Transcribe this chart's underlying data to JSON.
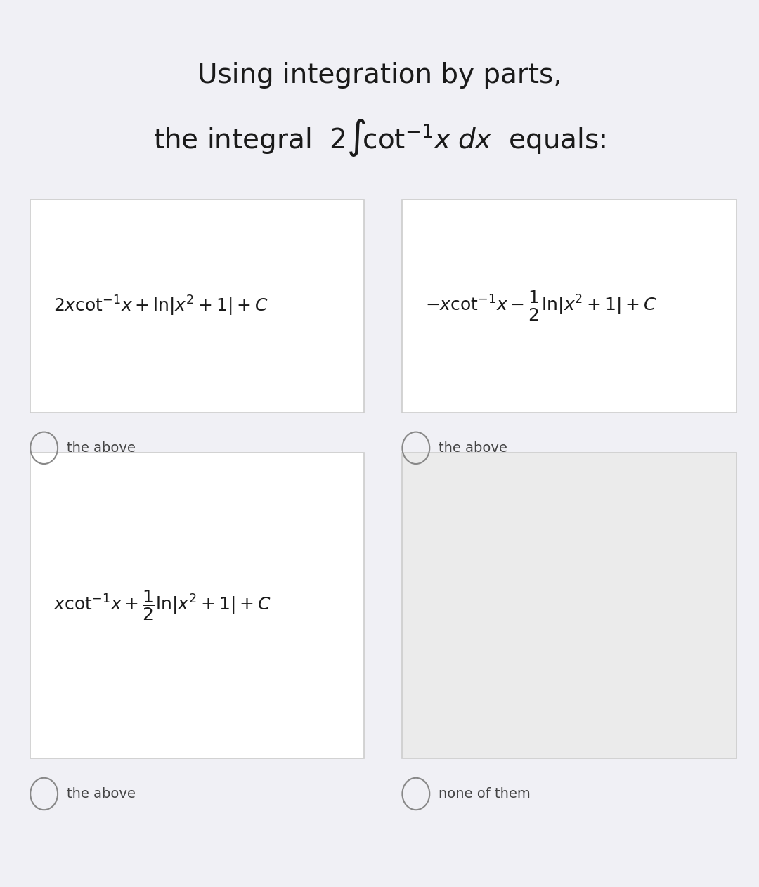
{
  "bg_color": "#f0f0f5",
  "card_bg_white": "#ffffff",
  "card_bg_gray": "#ebebeb",
  "card_border": "#cccccc",
  "title_line1": "Using integration by parts,",
  "title_line2": "the integral  2∯cot⁻¹ x dx  equals:",
  "option_A_formula": "$2x\\cot^{-1}x + \\ln|x^2 + 1| + C$",
  "option_B_formula": "$-x\\cot^{-1}x - \\dfrac{1}{2}\\ln|x^2 + 1| + C$",
  "option_C_formula": "$x\\cot^{-1}x + \\dfrac{1}{2}\\ln|x^2 + 1| + C$",
  "option_D_formula": "",
  "label_the_above": "the above",
  "label_none": "none of them",
  "title_fontsize": 28,
  "formula_fontsize": 18,
  "label_fontsize": 14
}
